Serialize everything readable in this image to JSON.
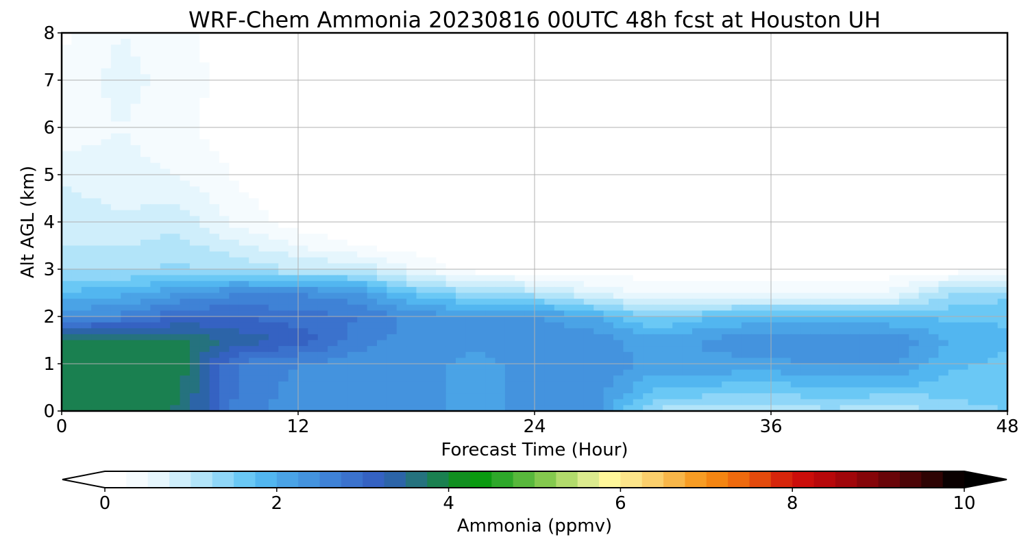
{
  "chart_data": {
    "type": "heatmap",
    "subtype": "filled-contour time-height cross section",
    "title": "WRF-Chem Ammonia  20230816 00UTC 48h fcst at Houston UH",
    "xlabel": "Forecast Time (Hour)",
    "ylabel": "Alt AGL (km)",
    "xlim": [
      0,
      48
    ],
    "ylim": [
      0,
      8
    ],
    "xticks": [
      "0",
      "12",
      "24",
      "36",
      "48"
    ],
    "yticks": [
      "0",
      "1",
      "2",
      "3",
      "4",
      "5",
      "6",
      "7",
      "8"
    ],
    "grid": true,
    "colorbar": {
      "label": "Ammonia  (ppmv)",
      "ticks": [
        "0",
        "2",
        "4",
        "6",
        "8",
        "10"
      ],
      "range": [
        0,
        10
      ],
      "extend": "both",
      "colors": [
        "#ffffff",
        "#f5fbfe",
        "#e6f6fd",
        "#cfeefb",
        "#b2e4f9",
        "#8fd6f8",
        "#6ac8f5",
        "#52b6f0",
        "#4aa3e6",
        "#4493de",
        "#3f82d6",
        "#3b72cd",
        "#3562c2",
        "#2c64a8",
        "#25727e",
        "#1a8050",
        "#118f20",
        "#0a9a10",
        "#2ea82a",
        "#58b83c",
        "#84c94e",
        "#b2db6c",
        "#dceb8e",
        "#fff79a",
        "#fde58a",
        "#fbcf6c",
        "#f8b649",
        "#f79c24",
        "#f48512",
        "#ee6a0e",
        "#e34a0c",
        "#d6260b",
        "#cb0e0a",
        "#b7080a",
        "#a0060a",
        "#850509",
        "#690408",
        "#4c0406",
        "#2e0303",
        "#0a0000"
      ]
    },
    "x": [
      0,
      3,
      6,
      9,
      12,
      15,
      18,
      21,
      24,
      27,
      30,
      33,
      36,
      39,
      42,
      45,
      48
    ],
    "y": [
      0,
      0.5,
      1,
      1.5,
      2,
      2.5,
      3,
      3.5,
      4,
      5,
      6,
      7,
      8
    ],
    "z": [
      [
        3.8,
        3.9,
        3.7,
        2.6,
        2.4,
        2.4,
        2.3,
        2.2,
        2.3,
        2.4,
        1.2,
        1.1,
        1.1,
        1.2,
        0.9,
        1.4,
        1.5
      ],
      [
        3.8,
        3.9,
        3.8,
        2.7,
        2.4,
        2.4,
        2.3,
        2.2,
        2.3,
        2.4,
        1.8,
        1.7,
        1.6,
        1.8,
        1.8,
        1.6,
        1.6
      ],
      [
        3.9,
        4.0,
        3.9,
        2.7,
        2.5,
        2.4,
        2.3,
        2.2,
        2.3,
        2.4,
        2.2,
        2.2,
        2.2,
        2.3,
        2.3,
        1.8,
        1.7
      ],
      [
        3.8,
        3.9,
        3.8,
        3.4,
        3.2,
        2.6,
        2.4,
        2.3,
        2.4,
        2.4,
        2.1,
        2.3,
        2.4,
        2.4,
        2.5,
        2.0,
        1.8
      ],
      [
        2.4,
        2.6,
        3.0,
        3.0,
        2.8,
        2.8,
        2.4,
        2.3,
        2.3,
        2.0,
        1.4,
        1.7,
        1.9,
        1.8,
        1.7,
        1.7,
        1.7
      ],
      [
        1.8,
        1.9,
        2.2,
        2.5,
        2.5,
        2.3,
        1.6,
        1.3,
        1.1,
        0.7,
        0.4,
        0.4,
        0.4,
        0.4,
        0.5,
        1.2,
        1.4
      ],
      [
        1.2,
        1.2,
        1.3,
        1.2,
        1.0,
        1.0,
        0.5,
        0.1,
        0.1,
        0.1,
        0.1,
        0.1,
        0.1,
        0.1,
        0.1,
        0.1,
        0.2
      ],
      [
        1.0,
        1.0,
        1.1,
        0.8,
        0.5,
        0.2,
        0.1,
        0.1,
        0.1,
        0.1,
        0.1,
        0.1,
        0.1,
        0.1,
        0.1,
        0.1,
        0.1
      ],
      [
        0.9,
        0.8,
        0.9,
        0.4,
        0.1,
        0.1,
        0.1,
        0.1,
        0.1,
        0.1,
        0.1,
        0.1,
        0.1,
        0.1,
        0.1,
        0.1,
        0.1
      ],
      [
        0.7,
        0.6,
        0.5,
        0.2,
        0.1,
        0.1,
        0.1,
        0.1,
        0.1,
        0.1,
        0.1,
        0.1,
        0.1,
        0.1,
        0.1,
        0.1,
        0.1
      ],
      [
        0.3,
        0.5,
        0.3,
        0.1,
        0.1,
        0.1,
        0.1,
        0.1,
        0.1,
        0.1,
        0.1,
        0.1,
        0.1,
        0.1,
        0.1,
        0.1,
        0.1
      ],
      [
        0.3,
        0.6,
        0.4,
        0.1,
        0.1,
        0.1,
        0.1,
        0.1,
        0.1,
        0.1,
        0.1,
        0.1,
        0.1,
        0.1,
        0.1,
        0.1,
        0.1
      ],
      [
        0.2,
        0.5,
        0.3,
        0.1,
        0.1,
        0.1,
        0.1,
        0.1,
        0.1,
        0.1,
        0.1,
        0.1,
        0.1,
        0.1,
        0.1,
        0.1,
        0.1
      ]
    ]
  }
}
